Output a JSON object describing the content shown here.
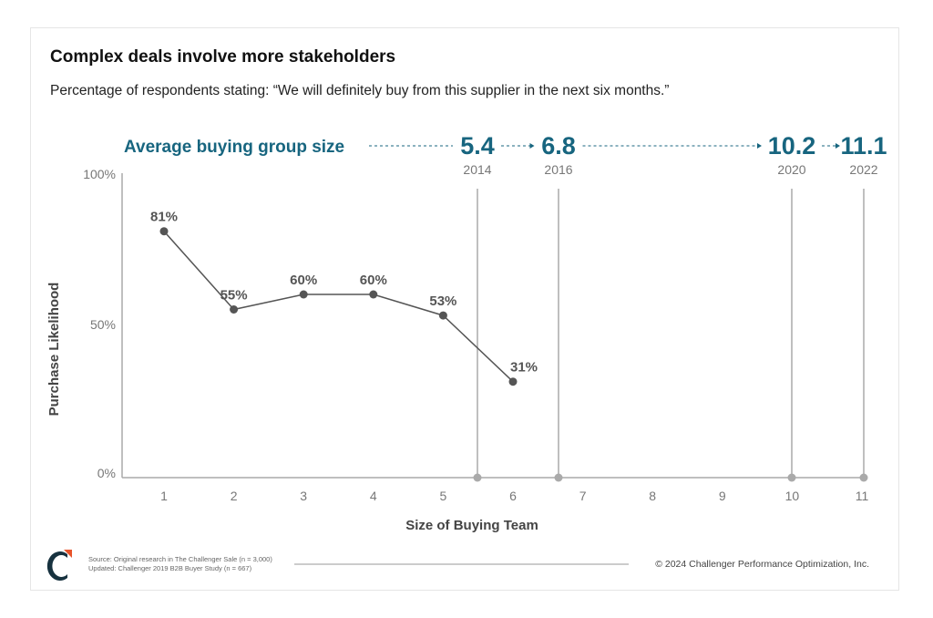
{
  "title": "Complex deals involve more stakeholders",
  "subtitle": "Percentage of respondents stating: “We will definitely buy from this supplier in the next six months.”",
  "colors": {
    "accent": "#17657f",
    "line": "#555555",
    "grid": "#aaaaaa",
    "logo_orange": "#e8542a"
  },
  "chart_data": {
    "type": "line",
    "xlabel": "Size of Buying Team",
    "ylabel": "Purchase Likelihood",
    "x_ticks": [
      "1",
      "2",
      "3",
      "4",
      "5",
      "6",
      "7",
      "8",
      "9",
      "10",
      "11"
    ],
    "xlim": [
      1,
      11
    ],
    "ylim": [
      0,
      100
    ],
    "y_ticks": [
      {
        "value": 0,
        "label": "0%"
      },
      {
        "value": 50,
        "label": "50%"
      },
      {
        "value": 100,
        "label": "100%"
      }
    ],
    "points": [
      {
        "x": 1,
        "y": 81,
        "label": "81%"
      },
      {
        "x": 2,
        "y": 55,
        "label": "55%"
      },
      {
        "x": 3,
        "y": 60,
        "label": "60%"
      },
      {
        "x": 4,
        "y": 60,
        "label": "60%"
      },
      {
        "x": 5,
        "y": 53,
        "label": "53%"
      },
      {
        "x": 6,
        "y": 31,
        "label": "31%"
      }
    ],
    "buying_group": {
      "label": "Average buying group size",
      "markers": [
        {
          "value": 5.4,
          "label": "5.4",
          "year": "2014"
        },
        {
          "value": 6.8,
          "label": "6.8",
          "year": "2016"
        },
        {
          "value": 10.2,
          "label": "10.2",
          "year": "2020"
        },
        {
          "value": 11.1,
          "label": "11.1",
          "year": "2022"
        }
      ]
    }
  },
  "footer": {
    "source": "Source: Original research in The Challenger Sale (n = 3,000)",
    "updated": "Updated: Challenger 2019 B2B Buyer Study (n = 667)",
    "copyright": "© 2024 Challenger Performance Optimization, Inc.",
    "logo": "C"
  }
}
